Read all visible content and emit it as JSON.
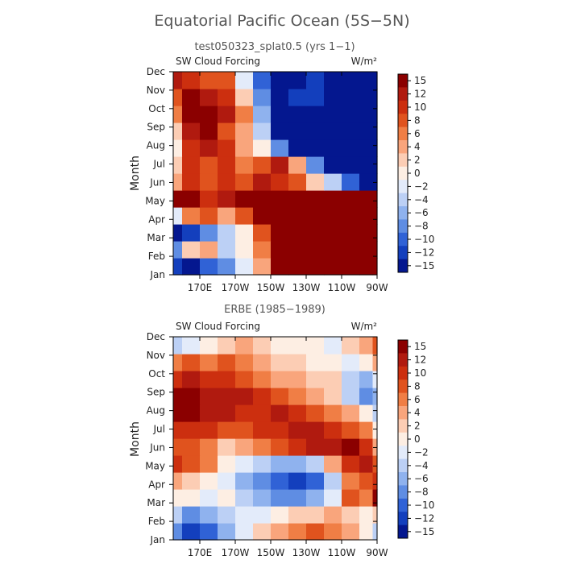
{
  "page": {
    "title": "Equatorial Pacific Ocean (5S−5N)"
  },
  "chart_data": [
    {
      "type": "heatmap",
      "panel_title": "test050323_splat0.5 (yrs 1−1)",
      "left_label": "SW Cloud Forcing",
      "right_label": "W/m²",
      "ylabel": "Month",
      "xlabel": "",
      "x_ticks": [
        "170E",
        "170W",
        "150W",
        "130W",
        "110W",
        "90W"
      ],
      "x_tick_lon": [
        170,
        190,
        210,
        230,
        250,
        270
      ],
      "xlim": [
        155,
        270
      ],
      "y_ticks": [
        "Jan",
        "Feb",
        "Mar",
        "Apr",
        "May",
        "Jun",
        "Jul",
        "Aug",
        "Sep",
        "Oct",
        "Nov",
        "Dec"
      ],
      "colorbar_levels": [
        -15,
        -12,
        -10,
        -8,
        -6,
        -4,
        -2,
        0,
        2,
        4,
        6,
        8,
        10,
        12,
        15
      ],
      "colorbar_labels": [
        "15",
        "12",
        "10",
        "8",
        "6",
        "4",
        "2",
        "0",
        "−2",
        "−4",
        "−6",
        "−8",
        "−10",
        "−12",
        "−15"
      ],
      "grid_lon": [
        155,
        165,
        175,
        185,
        195,
        205,
        215,
        225,
        235,
        245,
        255,
        265,
        270
      ],
      "values": [
        [
          -14,
          -16,
          -12,
          -9,
          -3,
          2,
          14,
          16,
          16,
          16,
          16,
          16,
          16
        ],
        [
          -10,
          0,
          3,
          -6,
          -1,
          4,
          16,
          16,
          16,
          16,
          16,
          16,
          16
        ],
        [
          -16,
          -13,
          -10,
          -6,
          -2,
          6,
          16,
          16,
          16,
          16,
          16,
          16,
          16
        ],
        [
          -4,
          4,
          6,
          3,
          6,
          16,
          16,
          16,
          16,
          16,
          16,
          16,
          16
        ],
        [
          13,
          16,
          9,
          10,
          13,
          16,
          16,
          16,
          16,
          16,
          16,
          16,
          16
        ],
        [
          3,
          8,
          6,
          9,
          7,
          11,
          9,
          6,
          0,
          -6,
          -12,
          -16,
          -16
        ],
        [
          1,
          9,
          6,
          8,
          4,
          7,
          10,
          2,
          -10,
          -16,
          -16,
          -16,
          -16
        ],
        [
          -2,
          8,
          10,
          9,
          3,
          -2,
          -10,
          -16,
          -16,
          -16,
          -16,
          -16,
          -16
        ],
        [
          0,
          10,
          13,
          7,
          2,
          -6,
          -16,
          -16,
          -16,
          -16,
          -16,
          -16,
          -16
        ],
        [
          4,
          13,
          16,
          10,
          5,
          -8,
          -16,
          -16,
          -16,
          -16,
          -16,
          -16,
          -16
        ],
        [
          6,
          12,
          11,
          8,
          0,
          -10,
          -16,
          -14,
          -14,
          -16,
          -16,
          -16,
          -16
        ],
        [
          10,
          8,
          6,
          6,
          -4,
          -12,
          -16,
          -16,
          -14,
          -16,
          -16,
          -16,
          -16
        ]
      ]
    },
    {
      "type": "heatmap",
      "panel_title": "ERBE (1985−1989)",
      "left_label": "SW Cloud Forcing",
      "right_label": "W/m²",
      "ylabel": "Month",
      "xlabel": "",
      "x_ticks": [
        "170E",
        "170W",
        "150W",
        "130W",
        "110W",
        "90W"
      ],
      "x_tick_lon": [
        170,
        190,
        210,
        230,
        250,
        270
      ],
      "xlim": [
        155,
        270
      ],
      "y_ticks": [
        "Jan",
        "Feb",
        "Mar",
        "Apr",
        "May",
        "Jun",
        "Jul",
        "Aug",
        "Sep",
        "Oct",
        "Nov",
        "Dec"
      ],
      "colorbar_levels": [
        -15,
        -12,
        -10,
        -8,
        -6,
        -4,
        -2,
        0,
        2,
        4,
        6,
        8,
        10,
        12,
        15
      ],
      "colorbar_labels": [
        "15",
        "12",
        "10",
        "8",
        "6",
        "4",
        "2",
        "0",
        "−2",
        "−4",
        "−6",
        "−8",
        "−10",
        "−12",
        "−15"
      ],
      "grid_lon": [
        155,
        165,
        175,
        185,
        195,
        205,
        215,
        225,
        235,
        245,
        255,
        265,
        270
      ],
      "values": [
        [
          -10,
          -14,
          -12,
          -8,
          -4,
          0,
          2,
          4,
          6,
          4,
          2,
          -2,
          -6
        ],
        [
          -6,
          -9,
          -8,
          -5,
          -4,
          -4,
          -2,
          0,
          1,
          3,
          1,
          -1,
          0
        ],
        [
          -2,
          -2,
          -4,
          -2,
          -6,
          -8,
          -9,
          -10,
          -8,
          -4,
          6,
          4,
          12
        ],
        [
          2,
          0,
          -2,
          -4,
          -8,
          -10,
          -12,
          -14,
          -12,
          -6,
          4,
          6,
          8
        ],
        [
          8,
          6,
          4,
          -2,
          -4,
          -6,
          -8,
          -8,
          -6,
          2,
          8,
          10,
          6
        ],
        [
          6,
          6,
          4,
          0,
          2,
          4,
          6,
          8,
          10,
          10,
          12,
          8,
          2
        ],
        [
          8,
          8,
          8,
          6,
          6,
          8,
          8,
          10,
          10,
          8,
          6,
          4,
          -2
        ],
        [
          12,
          12,
          10,
          10,
          8,
          8,
          10,
          8,
          6,
          4,
          2,
          -2,
          -6
        ],
        [
          14,
          12,
          10,
          10,
          10,
          8,
          6,
          4,
          2,
          0,
          -6,
          -10,
          -8
        ],
        [
          8,
          10,
          8,
          8,
          6,
          4,
          2,
          2,
          0,
          0,
          -6,
          -8,
          -4
        ],
        [
          4,
          6,
          4,
          6,
          4,
          2,
          0,
          0,
          -2,
          -2,
          -4,
          -2,
          2
        ],
        [
          -6,
          -4,
          -2,
          0,
          2,
          0,
          -2,
          -2,
          -2,
          -4,
          0,
          2,
          6
        ]
      ]
    }
  ],
  "colors": {
    "palette_high_to_low": [
      "#8b0000",
      "#b01a0f",
      "#cc2f0f",
      "#e0531e",
      "#f07e45",
      "#f9a57c",
      "#fccdb4",
      "#fdeee3",
      "#e3ebfa",
      "#bcd0f5",
      "#8fb2ee",
      "#5f8de3",
      "#3062d6",
      "#133fbd",
      "#04178f"
    ]
  }
}
